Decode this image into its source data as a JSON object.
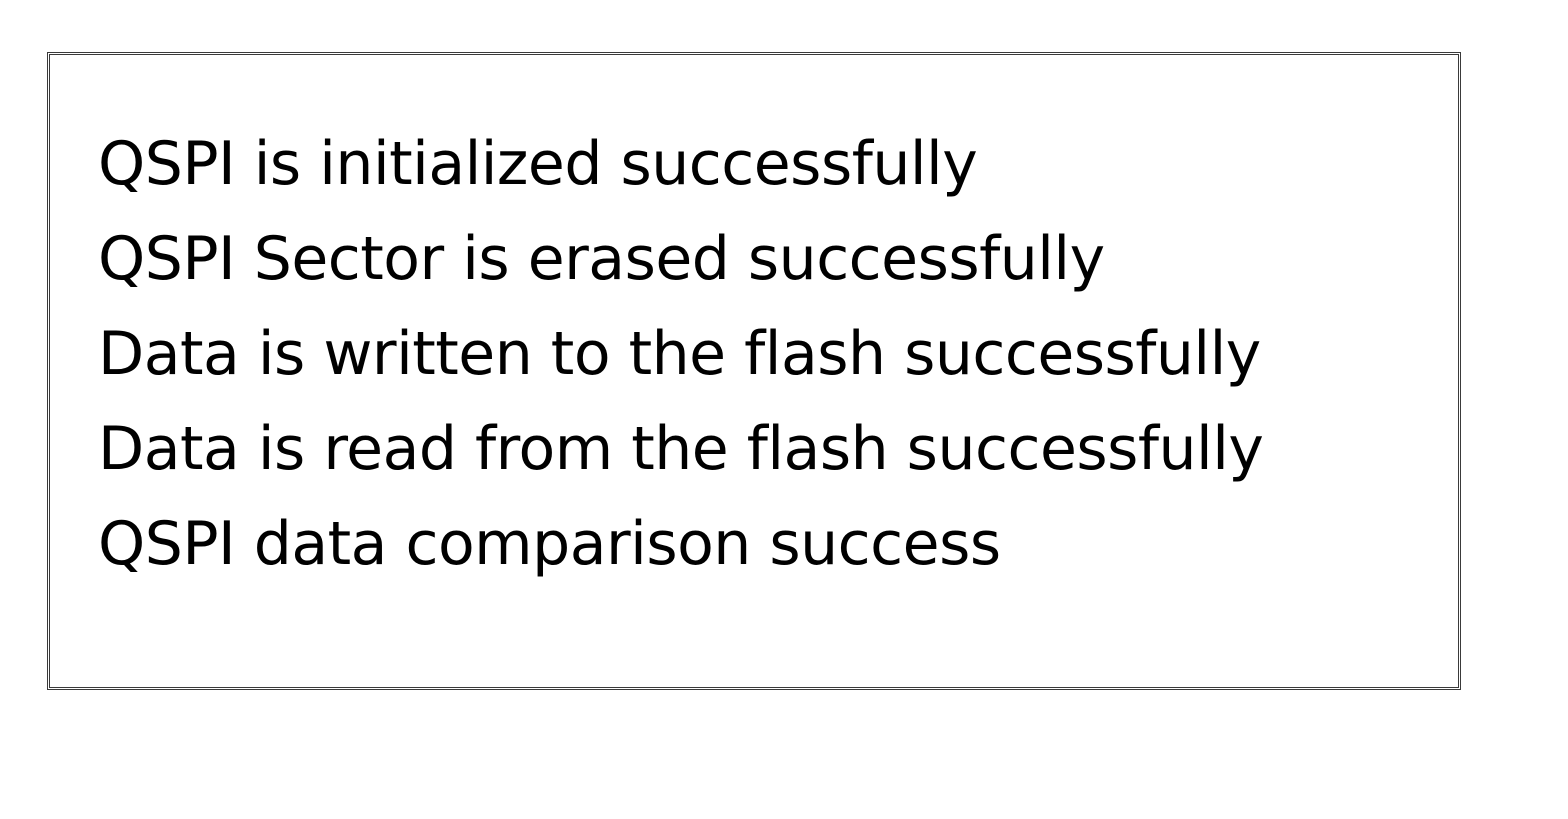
{
  "log": {
    "lines": [
      "QSPI is initialized successfully",
      "QSPI Sector is erased successfully",
      "Data is written to the flash successfully",
      "Data is read from the flash successfully",
      "QSPI data comparison success"
    ]
  },
  "colors": {
    "text": "#000000",
    "border": "#3a3a3a",
    "background": "#ffffff"
  }
}
